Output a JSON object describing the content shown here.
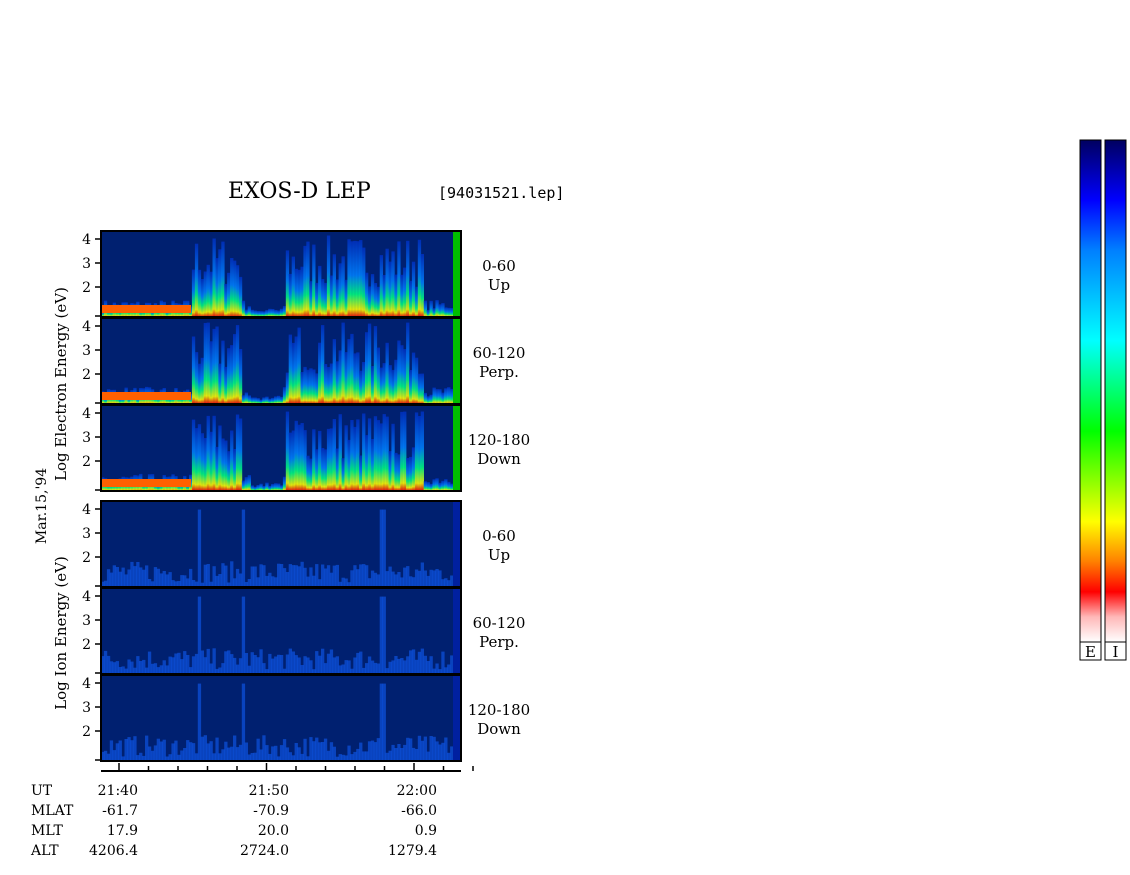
{
  "chart_data": {
    "type": "heatmap",
    "title": "EXOS-D LEP",
    "file": "[94031521.lep]",
    "date": "Mar.15,'94",
    "electron_ylabel": [
      "Log",
      "Electron",
      "Energy",
      "(eV)"
    ],
    "ion_ylabel": [
      "Log",
      "Ion",
      "Energy",
      "(eV)"
    ],
    "ylim": [
      1,
      4
    ],
    "yticks": [
      2,
      3,
      4
    ],
    "colors": {
      "background": "#002070",
      "scale": [
        "#ffffff",
        "#ffb0b0",
        "#ff0000",
        "#ff8000",
        "#ffff00",
        "#00ff00",
        "#00ffff",
        "#0080ff",
        "#0000ff",
        "#000060"
      ]
    },
    "panels": [
      {
        "species": "Electron",
        "pitch_angle": "0-60",
        "direction": "Up"
      },
      {
        "species": "Electron",
        "pitch_angle": "60-120",
        "direction": "Perp."
      },
      {
        "species": "Electron",
        "pitch_angle": "120-180",
        "direction": "Down"
      },
      {
        "species": "Ion",
        "pitch_angle": "0-60",
        "direction": "Up"
      },
      {
        "species": "Ion",
        "pitch_angle": "60-120",
        "direction": "Perp."
      },
      {
        "species": "Ion",
        "pitch_angle": "120-180",
        "direction": "Down"
      }
    ],
    "time_axis": {
      "rows": [
        {
          "label": "UT",
          "values": [
            "21:40",
            "21:50",
            "22:00"
          ]
        },
        {
          "label": "MLAT",
          "values": [
            "-61.7",
            "-70.9",
            "-66.0"
          ]
        },
        {
          "label": "MLT",
          "values": [
            "17.9",
            "20.0",
            "0.9"
          ]
        },
        {
          "label": "ALT",
          "values": [
            "4206.4",
            "2724.0",
            "1279.4"
          ]
        }
      ]
    },
    "colorbars": [
      "E",
      "I"
    ]
  }
}
